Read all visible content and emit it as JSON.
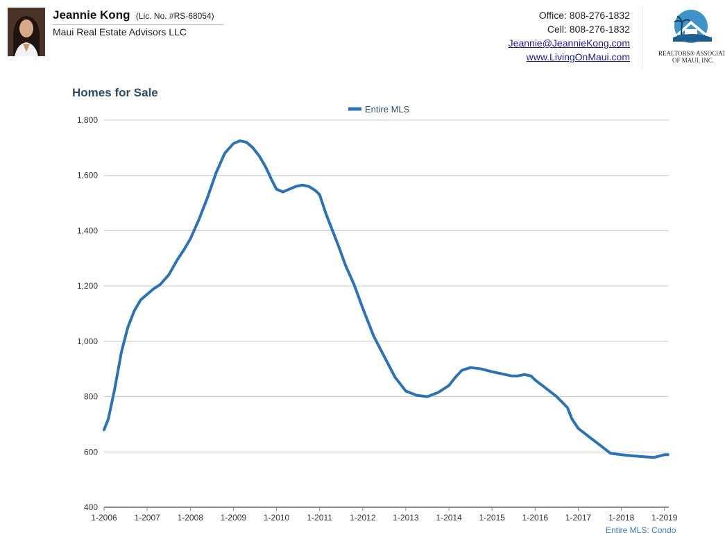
{
  "header": {
    "agent_name": "Jeannie Kong",
    "license": "(Lic. No. #RS-68054)",
    "company": "Maui Real Estate Advisors LLC",
    "office": "Office: 808-276-1832",
    "cell": "Cell: 808-276-1832",
    "email": "Jeannie@JeannieKong.com",
    "website": "www.LivingOnMaui.com",
    "logo_text_line1": "REALTORS® ASSOCIATION",
    "logo_text_line2": "OF MAUI, INC."
  },
  "footnote": "Entire MLS: Condo",
  "colors": {
    "series": "#2a73b6",
    "title": "#2e4e6e",
    "grid": "#c8c8c8",
    "axis": "#888888"
  },
  "chart_data": {
    "type": "line",
    "title": "Homes for Sale",
    "xlabel": "",
    "ylabel": "",
    "ylim": [
      400,
      1800
    ],
    "yticks": [
      400,
      600,
      800,
      1000,
      1200,
      1400,
      1600,
      1800
    ],
    "ytick_labels": [
      "400",
      "600",
      "800",
      "1,000",
      "1,200",
      "1,400",
      "1,600",
      "1,800"
    ],
    "xlim": [
      2006.0,
      2019.1
    ],
    "xticks": [
      2006,
      2007,
      2008,
      2009,
      2010,
      2011,
      2012,
      2013,
      2014,
      2015,
      2016,
      2017,
      2018,
      2019
    ],
    "xtick_labels": [
      "1-2006",
      "1-2007",
      "1-2008",
      "1-2009",
      "1-2010",
      "1-2011",
      "1-2012",
      "1-2013",
      "1-2014",
      "1-2015",
      "1-2016",
      "1-2017",
      "1-2018",
      "1-2019"
    ],
    "grid": true,
    "legend": "top-center",
    "series": [
      {
        "name": "Entire MLS",
        "x": [
          2006.0,
          2006.1,
          2006.25,
          2006.4,
          2006.55,
          2006.7,
          2006.85,
          2007.0,
          2007.15,
          2007.3,
          2007.5,
          2007.7,
          2007.85,
          2008.0,
          2008.2,
          2008.4,
          2008.6,
          2008.8,
          2009.0,
          2009.15,
          2009.3,
          2009.45,
          2009.6,
          2009.75,
          2009.9,
          2010.0,
          2010.15,
          2010.3,
          2010.45,
          2010.6,
          2010.75,
          2010.9,
          2011.0,
          2011.15,
          2011.3,
          2011.45,
          2011.6,
          2011.8,
          2012.0,
          2012.25,
          2012.5,
          2012.75,
          2013.0,
          2013.25,
          2013.5,
          2013.75,
          2014.0,
          2014.15,
          2014.3,
          2014.5,
          2014.75,
          2015.0,
          2015.15,
          2015.3,
          2015.45,
          2015.6,
          2015.75,
          2015.9,
          2016.0,
          2016.25,
          2016.5,
          2016.75,
          2016.85,
          2017.0,
          2017.25,
          2017.5,
          2017.75,
          2018.0,
          2018.25,
          2018.5,
          2018.75,
          2019.0,
          2019.08
        ],
        "values": [
          680,
          720,
          830,
          960,
          1050,
          1110,
          1150,
          1170,
          1190,
          1205,
          1240,
          1295,
          1330,
          1370,
          1440,
          1520,
          1610,
          1680,
          1715,
          1725,
          1720,
          1700,
          1670,
          1630,
          1580,
          1550,
          1540,
          1550,
          1560,
          1565,
          1560,
          1545,
          1530,
          1460,
          1400,
          1340,
          1275,
          1205,
          1120,
          1020,
          945,
          870,
          820,
          805,
          800,
          815,
          840,
          870,
          895,
          905,
          900,
          890,
          885,
          880,
          875,
          875,
          880,
          875,
          860,
          830,
          800,
          760,
          720,
          685,
          655,
          625,
          595,
          590,
          586,
          583,
          580,
          590,
          590
        ]
      }
    ]
  }
}
